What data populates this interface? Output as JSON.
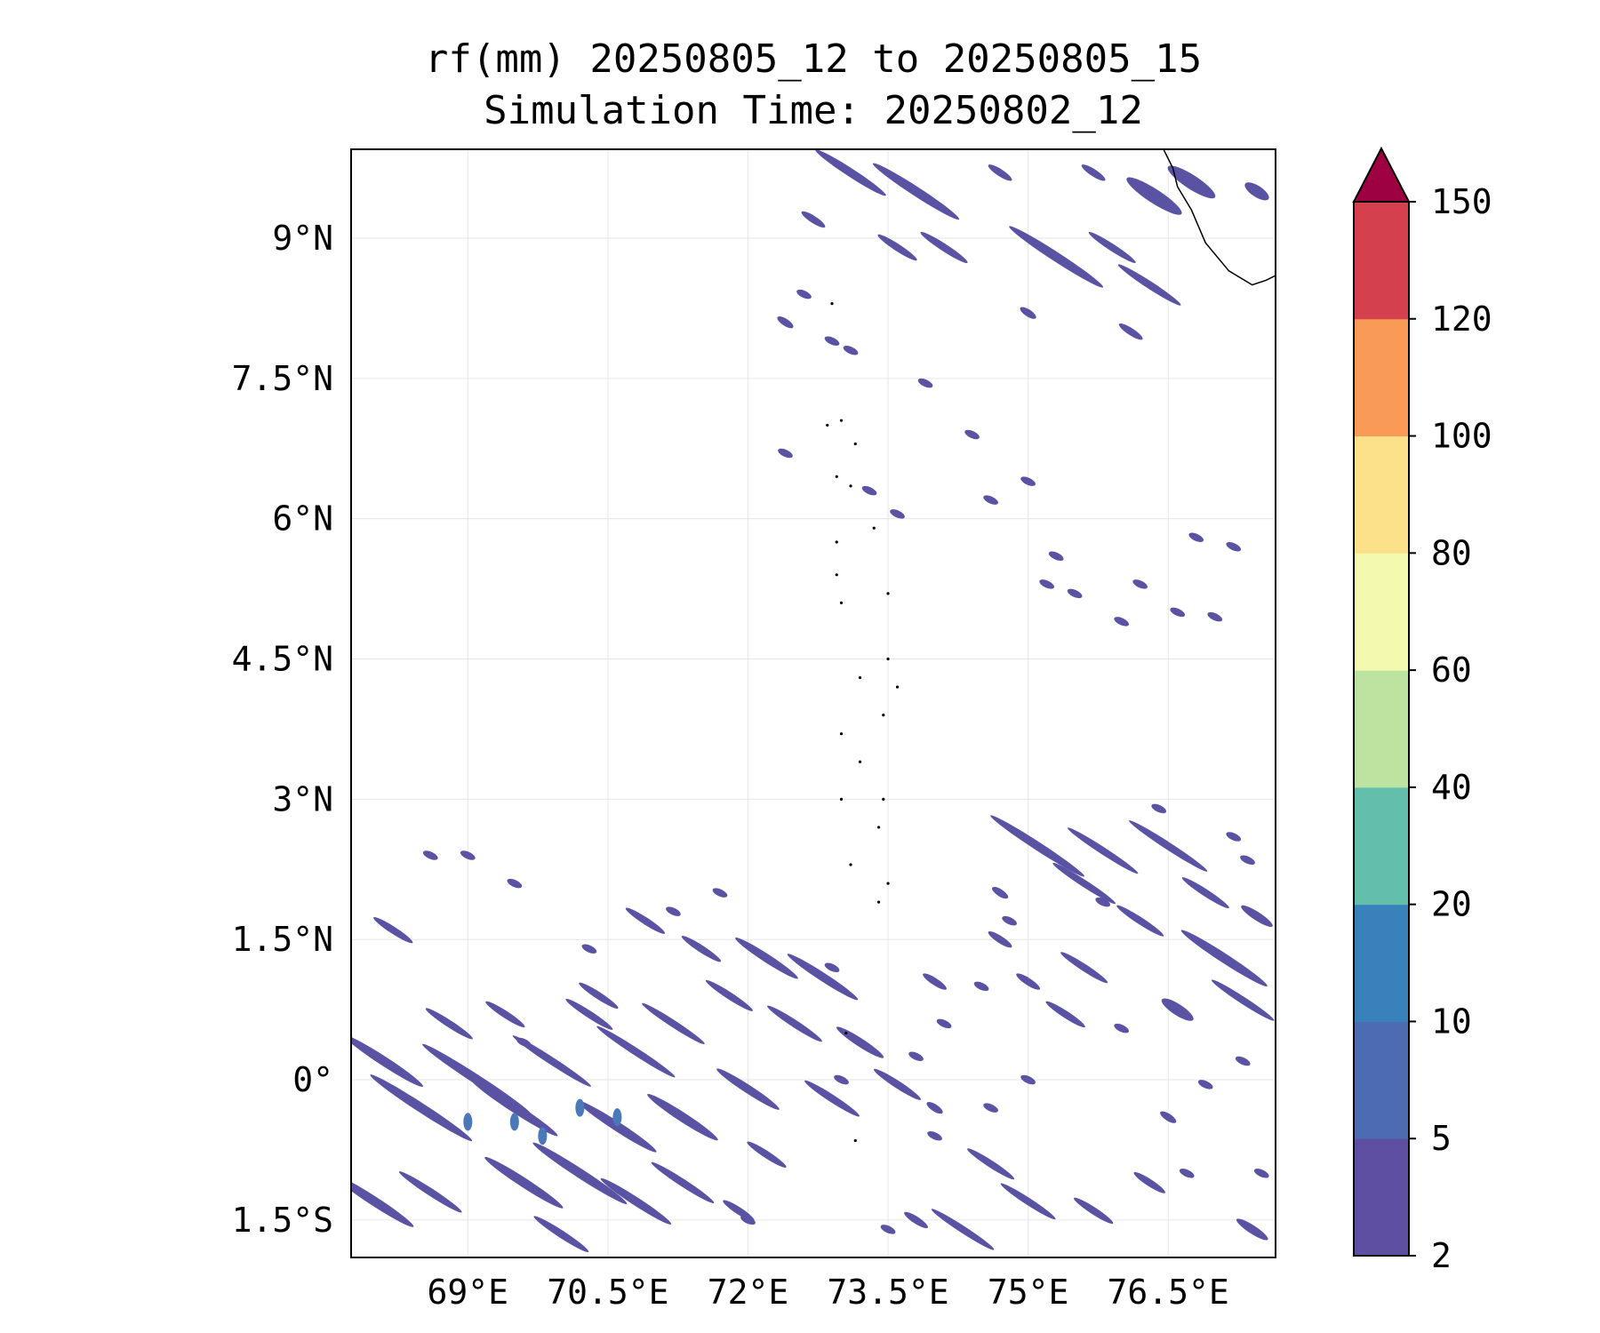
{
  "title": {
    "line1": "rf(mm) 20250805_12 to 20250805_15",
    "line2": "Simulation Time: 20250802_12"
  },
  "map": {
    "lon_range": [
      67.75,
      77.65
    ],
    "lat_range": [
      -1.9,
      9.95
    ],
    "grid": true,
    "x_ticks": [
      {
        "value": 69,
        "label": "69°E"
      },
      {
        "value": 70.5,
        "label": "70.5°E"
      },
      {
        "value": 72,
        "label": "72°E"
      },
      {
        "value": 73.5,
        "label": "73.5°E"
      },
      {
        "value": 75,
        "label": "75°E"
      },
      {
        "value": 76.5,
        "label": "76.5°E"
      }
    ],
    "y_ticks": [
      {
        "value": 9,
        "label": "9°N"
      },
      {
        "value": 7.5,
        "label": "7.5°N"
      },
      {
        "value": 6,
        "label": "6°N"
      },
      {
        "value": 4.5,
        "label": "4.5°N"
      },
      {
        "value": 3,
        "label": "3°N"
      },
      {
        "value": 1.5,
        "label": "1.5°N"
      },
      {
        "value": 0,
        "label": "0°"
      },
      {
        "value": -1.5,
        "label": "1.5°S"
      }
    ],
    "rain_color": "#5a52a3",
    "rain_color_high": "#4a78b8",
    "rain_bands": [
      {
        "lon": 73.1,
        "lat": 9.7,
        "len": 0.9,
        "w": 0.09
      },
      {
        "lon": 73.8,
        "lat": 9.5,
        "len": 1.1,
        "w": 0.1
      },
      {
        "lon": 74.1,
        "lat": 8.9,
        "len": 0.6,
        "w": 0.08
      },
      {
        "lon": 75.3,
        "lat": 8.8,
        "len": 1.2,
        "w": 0.1
      },
      {
        "lon": 75.9,
        "lat": 8.9,
        "len": 0.6,
        "w": 0.07
      },
      {
        "lon": 76.3,
        "lat": 8.5,
        "len": 0.8,
        "w": 0.08
      },
      {
        "lon": 76.35,
        "lat": 9.45,
        "len": 0.7,
        "w": 0.15
      },
      {
        "lon": 76.75,
        "lat": 9.6,
        "len": 0.6,
        "w": 0.15
      },
      {
        "lon": 77.45,
        "lat": 9.5,
        "len": 0.3,
        "w": 0.12
      },
      {
        "lon": 72.7,
        "lat": 9.2,
        "len": 0.3,
        "w": 0.05
      },
      {
        "lon": 74.7,
        "lat": 9.7,
        "len": 0.3,
        "w": 0.05
      },
      {
        "lon": 75.7,
        "lat": 9.7,
        "len": 0.3,
        "w": 0.05
      },
      {
        "lon": 75.0,
        "lat": 8.2,
        "len": 0.2,
        "w": 0.06
      },
      {
        "lon": 76.1,
        "lat": 8.0,
        "len": 0.3,
        "w": 0.05
      },
      {
        "lon": 72.4,
        "lat": 8.1,
        "len": 0.2,
        "w": 0.05
      },
      {
        "lon": 73.6,
        "lat": 8.9,
        "len": 0.5,
        "w": 0.06
      },
      {
        "lon": 75.1,
        "lat": 2.5,
        "len": 1.2,
        "w": 0.09
      },
      {
        "lon": 75.8,
        "lat": 2.45,
        "len": 0.9,
        "w": 0.07
      },
      {
        "lon": 76.5,
        "lat": 2.5,
        "len": 1.0,
        "w": 0.08
      },
      {
        "lon": 75.6,
        "lat": 2.1,
        "len": 0.8,
        "w": 0.06
      },
      {
        "lon": 76.9,
        "lat": 2.0,
        "len": 0.6,
        "w": 0.06
      },
      {
        "lon": 76.2,
        "lat": 1.7,
        "len": 0.6,
        "w": 0.07
      },
      {
        "lon": 77.45,
        "lat": 1.75,
        "len": 0.4,
        "w": 0.09
      },
      {
        "lon": 77.1,
        "lat": 1.3,
        "len": 1.1,
        "w": 0.1
      },
      {
        "lon": 76.6,
        "lat": 0.75,
        "len": 0.4,
        "w": 0.12
      },
      {
        "lon": 77.3,
        "lat": 0.85,
        "len": 0.8,
        "w": 0.07
      },
      {
        "lon": 75.6,
        "lat": 1.2,
        "len": 0.6,
        "w": 0.07
      },
      {
        "lon": 75.4,
        "lat": 0.7,
        "len": 0.5,
        "w": 0.05
      },
      {
        "lon": 75.0,
        "lat": 1.05,
        "len": 0.3,
        "w": 0.05
      },
      {
        "lon": 74.0,
        "lat": 1.05,
        "len": 0.3,
        "w": 0.05
      },
      {
        "lon": 74.7,
        "lat": 2.0,
        "len": 0.2,
        "w": 0.05
      },
      {
        "lon": 74.7,
        "lat": 1.5,
        "len": 0.3,
        "w": 0.05
      },
      {
        "lon": 68.2,
        "lat": 1.6,
        "len": 0.5,
        "w": 0.06
      },
      {
        "lon": 70.9,
        "lat": 1.7,
        "len": 0.5,
        "w": 0.07
      },
      {
        "lon": 71.5,
        "lat": 1.4,
        "len": 0.5,
        "w": 0.07
      },
      {
        "lon": 72.2,
        "lat": 1.3,
        "len": 0.8,
        "w": 0.09
      },
      {
        "lon": 72.8,
        "lat": 1.1,
        "len": 0.9,
        "w": 0.09
      },
      {
        "lon": 72.5,
        "lat": 0.6,
        "len": 0.7,
        "w": 0.08
      },
      {
        "lon": 73.2,
        "lat": 0.4,
        "len": 0.6,
        "w": 0.09
      },
      {
        "lon": 73.6,
        "lat": -0.05,
        "len": 0.6,
        "w": 0.08
      },
      {
        "lon": 72.9,
        "lat": -0.2,
        "len": 0.7,
        "w": 0.08
      },
      {
        "lon": 71.8,
        "lat": 0.9,
        "len": 0.6,
        "w": 0.06
      },
      {
        "lon": 71.2,
        "lat": 0.6,
        "len": 0.8,
        "w": 0.07
      },
      {
        "lon": 70.8,
        "lat": 0.3,
        "len": 1.0,
        "w": 0.08
      },
      {
        "lon": 70.3,
        "lat": 0.7,
        "len": 0.6,
        "w": 0.06
      },
      {
        "lon": 70.6,
        "lat": -0.5,
        "len": 1.0,
        "w": 0.1
      },
      {
        "lon": 71.3,
        "lat": -0.4,
        "len": 0.9,
        "w": 0.1
      },
      {
        "lon": 72.0,
        "lat": -0.1,
        "len": 0.8,
        "w": 0.09
      },
      {
        "lon": 72.2,
        "lat": -0.8,
        "len": 0.5,
        "w": 0.07
      },
      {
        "lon": 69.9,
        "lat": 0.2,
        "len": 1.0,
        "w": 0.08
      },
      {
        "lon": 69.5,
        "lat": -0.3,
        "len": 1.1,
        "w": 0.1
      },
      {
        "lon": 69.1,
        "lat": 0.0,
        "len": 1.4,
        "w": 0.1
      },
      {
        "lon": 68.5,
        "lat": -0.3,
        "len": 1.3,
        "w": 0.1
      },
      {
        "lon": 68.1,
        "lat": 0.2,
        "len": 1.0,
        "w": 0.1
      },
      {
        "lon": 68.0,
        "lat": -1.3,
        "len": 1.0,
        "w": 0.1
      },
      {
        "lon": 68.6,
        "lat": -1.2,
        "len": 0.8,
        "w": 0.08
      },
      {
        "lon": 69.6,
        "lat": -1.1,
        "len": 1.0,
        "w": 0.1
      },
      {
        "lon": 70.2,
        "lat": -1.0,
        "len": 1.2,
        "w": 0.1
      },
      {
        "lon": 70.8,
        "lat": -1.3,
        "len": 0.9,
        "w": 0.09
      },
      {
        "lon": 71.3,
        "lat": -1.1,
        "len": 0.8,
        "w": 0.08
      },
      {
        "lon": 71.9,
        "lat": -1.4,
        "len": 0.4,
        "w": 0.06
      },
      {
        "lon": 70.0,
        "lat": -1.65,
        "len": 0.7,
        "w": 0.08
      },
      {
        "lon": 70.4,
        "lat": 0.9,
        "len": 0.5,
        "w": 0.05
      },
      {
        "lon": 69.4,
        "lat": 0.7,
        "len": 0.5,
        "w": 0.06
      },
      {
        "lon": 68.8,
        "lat": 0.6,
        "len": 0.6,
        "w": 0.07
      },
      {
        "lon": 74.3,
        "lat": -1.6,
        "len": 0.8,
        "w": 0.07
      },
      {
        "lon": 75.0,
        "lat": -1.3,
        "len": 0.7,
        "w": 0.07
      },
      {
        "lon": 75.7,
        "lat": -1.4,
        "len": 0.5,
        "w": 0.06
      },
      {
        "lon": 76.3,
        "lat": -1.1,
        "len": 0.4,
        "w": 0.07
      },
      {
        "lon": 77.4,
        "lat": -1.6,
        "len": 0.4,
        "w": 0.09
      },
      {
        "lon": 74.6,
        "lat": -0.9,
        "len": 0.6,
        "w": 0.06
      },
      {
        "lon": 76.5,
        "lat": -0.4,
        "len": 0.2,
        "w": 0.07
      },
      {
        "lon": 73.8,
        "lat": -1.5,
        "len": 0.3,
        "w": 0.05
      },
      {
        "lon": 74.0,
        "lat": -0.3,
        "len": 0.2,
        "w": 0.04
      }
    ],
    "rain_cores": [
      {
        "lon": 69.0,
        "lat": -0.45
      },
      {
        "lon": 69.5,
        "lat": -0.45
      },
      {
        "lon": 69.8,
        "lat": -0.6
      },
      {
        "lon": 70.2,
        "lat": -0.3
      },
      {
        "lon": 70.6,
        "lat": -0.4
      }
    ],
    "rain_specks": [
      [
        72.6,
        8.4
      ],
      [
        72.9,
        7.9
      ],
      [
        73.1,
        7.8
      ],
      [
        73.9,
        7.45
      ],
      [
        74.4,
        6.9
      ],
      [
        75.0,
        6.4
      ],
      [
        74.6,
        6.2
      ],
      [
        73.3,
        6.3
      ],
      [
        73.6,
        6.05
      ],
      [
        72.4,
        6.7
      ],
      [
        75.3,
        5.6
      ],
      [
        75.2,
        5.3
      ],
      [
        75.5,
        5.2
      ],
      [
        76.0,
        4.9
      ],
      [
        76.6,
        5.0
      ],
      [
        77.0,
        4.95
      ],
      [
        76.8,
        5.8
      ],
      [
        77.2,
        5.7
      ],
      [
        76.2,
        5.3
      ],
      [
        75.8,
        1.9
      ],
      [
        76.4,
        2.9
      ],
      [
        77.2,
        2.6
      ],
      [
        77.35,
        2.35
      ],
      [
        74.1,
        0.6
      ],
      [
        74.5,
        1.0
      ],
      [
        73.8,
        0.25
      ],
      [
        75.0,
        0.0
      ],
      [
        74.0,
        -0.6
      ],
      [
        74.6,
        -0.3
      ],
      [
        76.0,
        0.55
      ],
      [
        77.3,
        0.2
      ],
      [
        76.9,
        -0.05
      ],
      [
        76.7,
        -1.0
      ],
      [
        77.5,
        -1.0
      ],
      [
        69.5,
        2.1
      ],
      [
        70.3,
        1.4
      ],
      [
        71.2,
        1.8
      ],
      [
        71.7,
        2.0
      ],
      [
        72.9,
        1.2
      ],
      [
        68.6,
        2.4
      ],
      [
        69.0,
        2.4
      ],
      [
        69.6,
        0.4
      ],
      [
        73.0,
        0.0
      ],
      [
        72.0,
        -1.5
      ],
      [
        73.5,
        -1.6
      ],
      [
        74.8,
        1.7
      ]
    ],
    "coast_color": "#000000",
    "india_coast": [
      [
        76.45,
        9.95
      ],
      [
        76.55,
        9.75
      ],
      [
        76.6,
        9.55
      ],
      [
        76.75,
        9.3
      ],
      [
        76.9,
        8.95
      ],
      [
        77.15,
        8.65
      ],
      [
        77.4,
        8.5
      ],
      [
        77.55,
        8.55
      ],
      [
        77.65,
        8.6
      ]
    ],
    "islands": [
      [
        72.9,
        8.3
      ],
      [
        72.85,
        7.0
      ],
      [
        73.0,
        7.05
      ],
      [
        73.15,
        6.8
      ],
      [
        72.95,
        6.45
      ],
      [
        73.1,
        6.35
      ],
      [
        72.95,
        5.75
      ],
      [
        73.35,
        5.9
      ],
      [
        72.95,
        5.4
      ],
      [
        73.5,
        5.2
      ],
      [
        73.0,
        5.1
      ],
      [
        73.5,
        4.5
      ],
      [
        73.6,
        4.2
      ],
      [
        73.2,
        4.3
      ],
      [
        73.45,
        3.9
      ],
      [
        73.0,
        3.7
      ],
      [
        73.2,
        3.4
      ],
      [
        73.45,
        3.0
      ],
      [
        73.0,
        3.0
      ],
      [
        73.4,
        2.7
      ],
      [
        73.1,
        2.3
      ],
      [
        73.5,
        2.1
      ],
      [
        73.4,
        1.9
      ],
      [
        73.05,
        0.5
      ],
      [
        73.15,
        -0.65
      ]
    ]
  },
  "colorbar": {
    "levels": [
      "2",
      "5",
      "10",
      "20",
      "40",
      "60",
      "80",
      "100",
      "120",
      "150"
    ],
    "colors": [
      "#5e4fa2",
      "#4d6bb0",
      "#3881bb",
      "#63bfab",
      "#bde3a1",
      "#f3faaf",
      "#fde18a",
      "#f99b56",
      "#d5404e"
    ],
    "extend_color": "#9e0142"
  }
}
